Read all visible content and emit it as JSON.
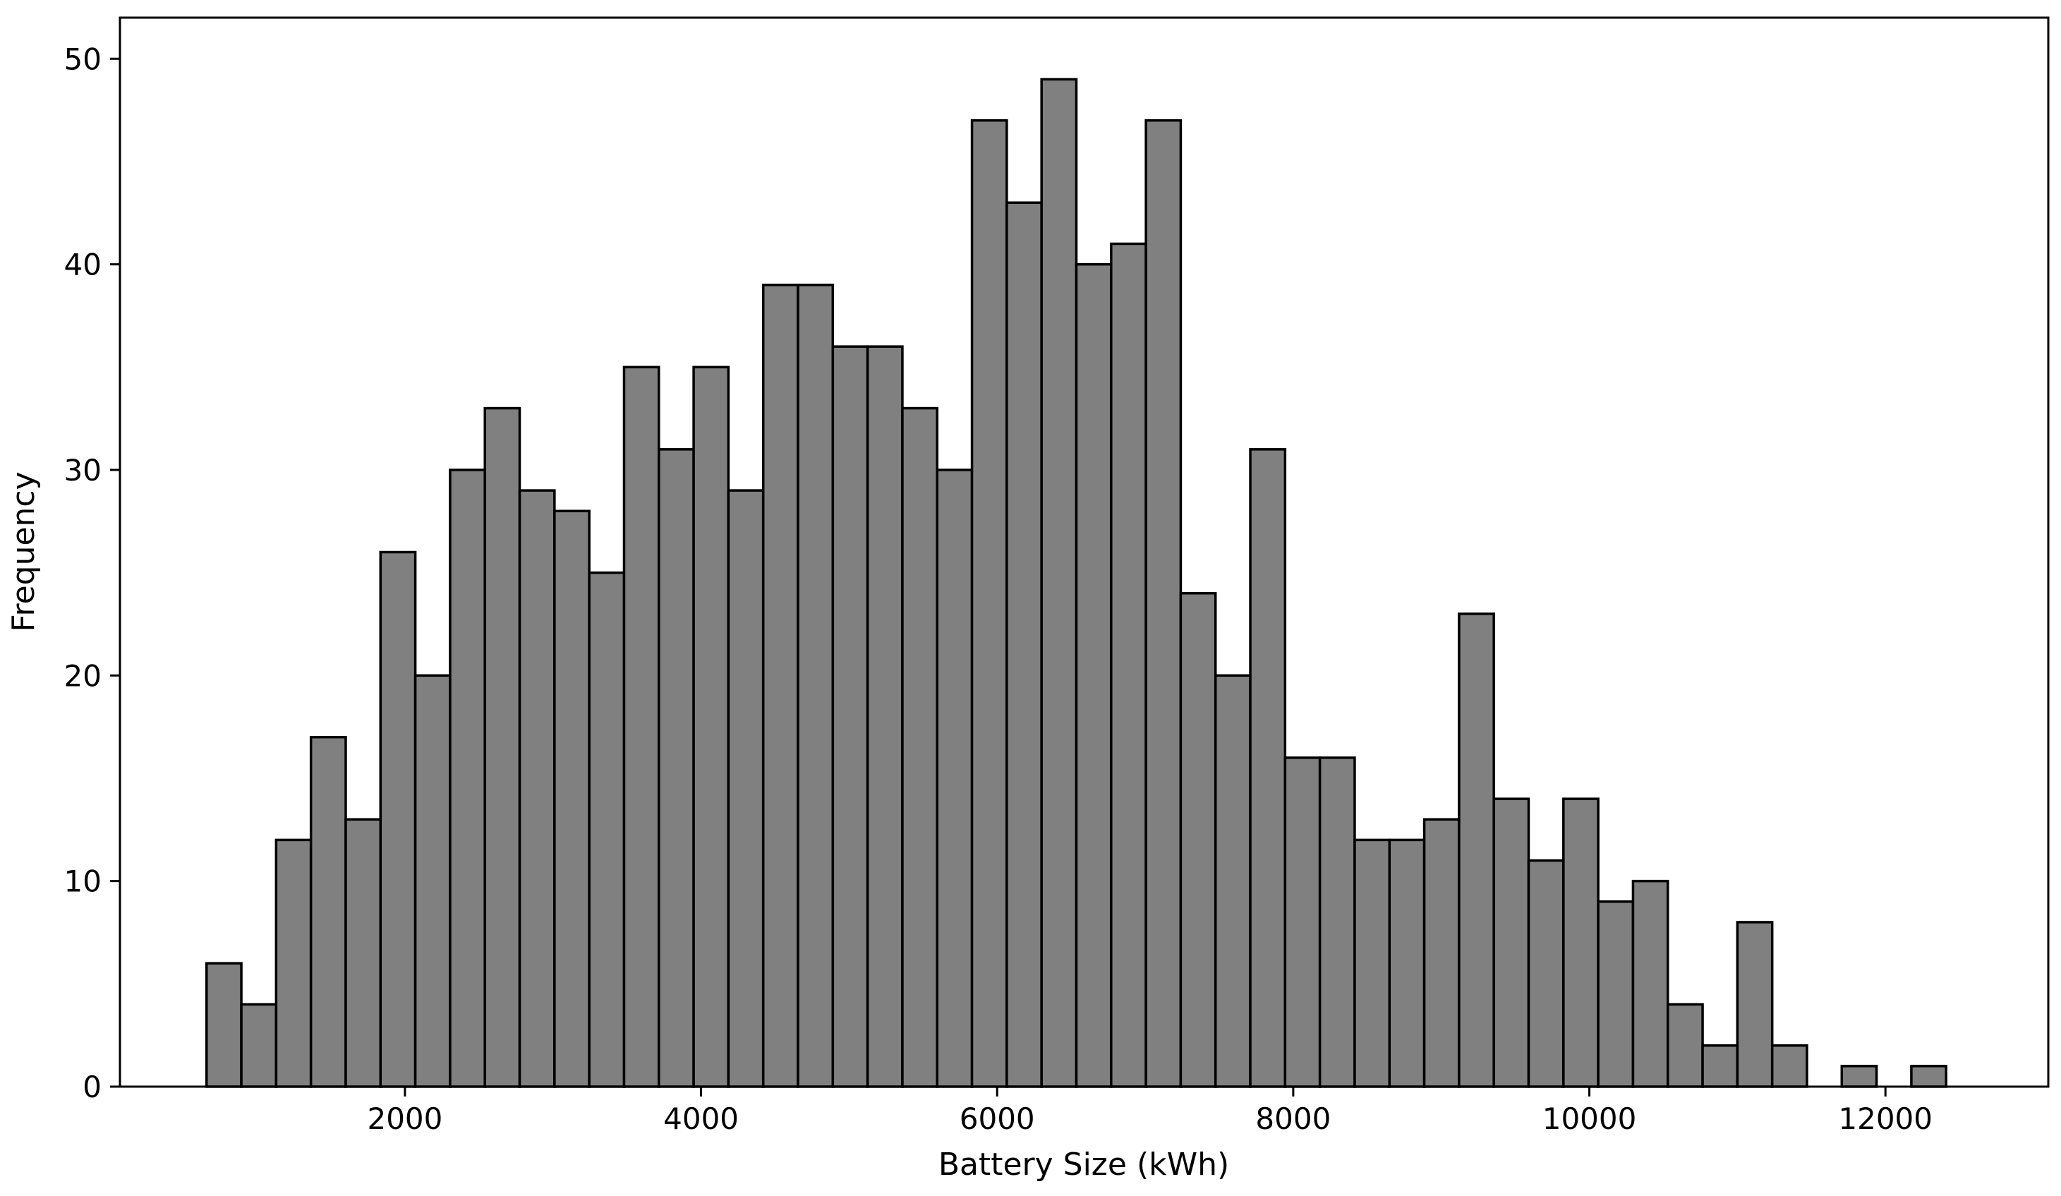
{
  "chart_data": {
    "type": "bar",
    "subtype": "histogram",
    "title": "",
    "xlabel": "Battery Size (kWh)",
    "ylabel": "Frequency",
    "xlim": [
      75,
      13100
    ],
    "ylim": [
      0,
      52
    ],
    "xticks": [
      2000,
      4000,
      6000,
      8000,
      10000,
      12000
    ],
    "xtick_labels": [
      "2000",
      "4000",
      "6000",
      "8000",
      "10000",
      "12000"
    ],
    "yticks": [
      0,
      10,
      20,
      30,
      40,
      50
    ],
    "ytick_labels": [
      "0",
      "10",
      "20",
      "30",
      "40",
      "50"
    ],
    "bin_start": 660,
    "bin_width": 235,
    "values": [
      6,
      4,
      12,
      17,
      13,
      26,
      20,
      30,
      33,
      29,
      28,
      25,
      35,
      31,
      35,
      29,
      39,
      39,
      36,
      36,
      33,
      30,
      47,
      43,
      49,
      40,
      41,
      47,
      24,
      20,
      31,
      16,
      16,
      12,
      12,
      13,
      23,
      14,
      11,
      14,
      9,
      10,
      4,
      2,
      8,
      2,
      0,
      1,
      0,
      1
    ],
    "bar_color": "#808080",
    "edge_color": "#000000",
    "grid": false,
    "legend": "none"
  }
}
